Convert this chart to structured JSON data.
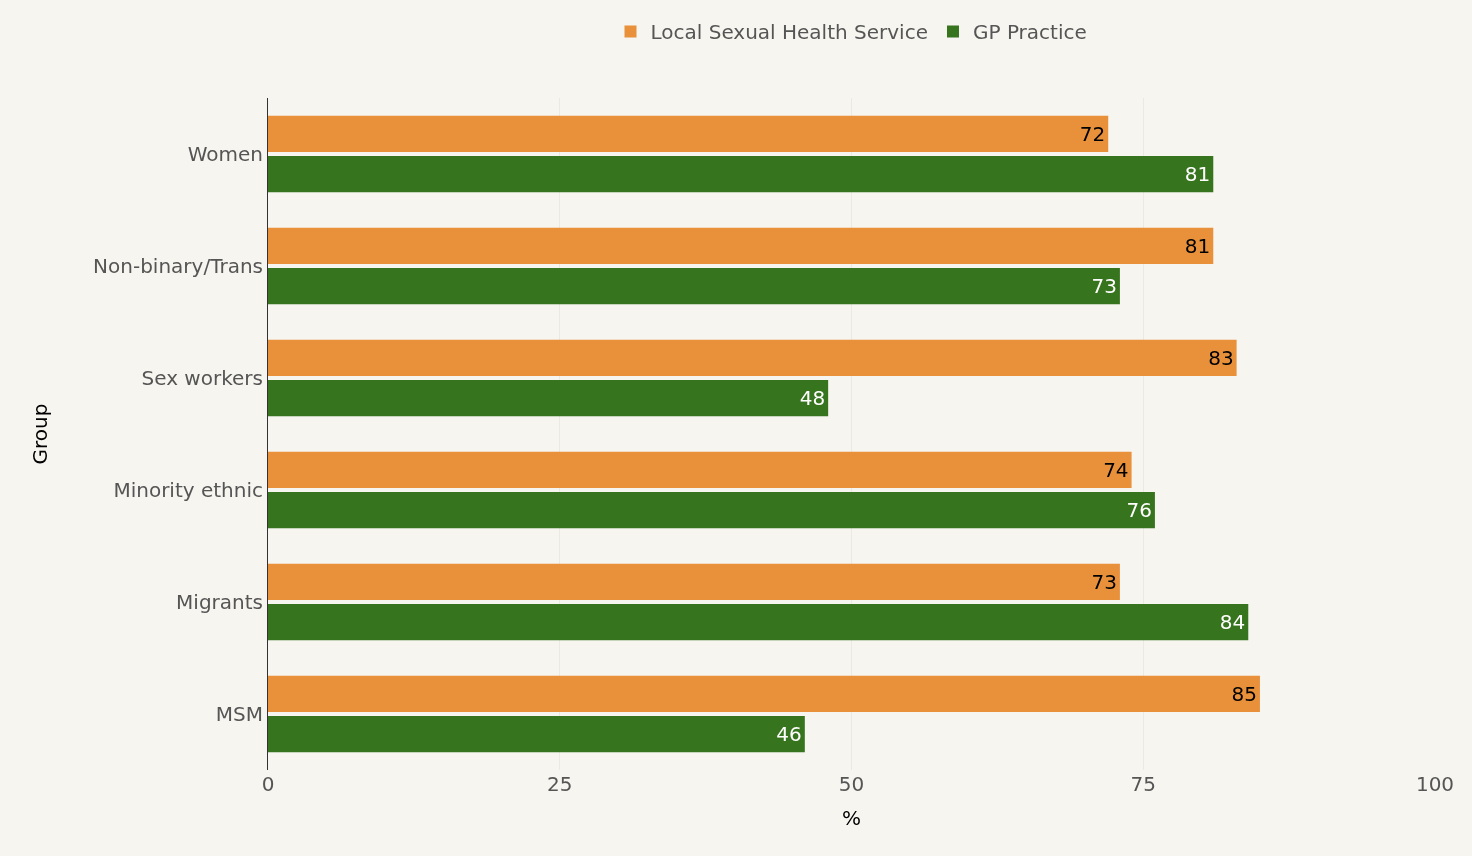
{
  "chart_data": {
    "type": "bar",
    "orientation": "horizontal",
    "xlabel": "%",
    "ylabel": "Group",
    "categories": [
      "Women",
      "Non-binary/Trans",
      "Sex workers",
      "Minority ethnic",
      "Migrants",
      "MSM"
    ],
    "series": [
      {
        "name": "Local Sexual Health Service",
        "color": "#e8913a",
        "values": [
          72,
          81,
          83,
          74,
          73,
          85
        ]
      },
      {
        "name": "GP Practice",
        "color": "#37741e",
        "values": [
          81,
          73,
          48,
          76,
          84,
          46
        ]
      }
    ],
    "xlim": [
      0,
      100
    ],
    "xticks": [
      0,
      25,
      50,
      75,
      100
    ],
    "grid": "x",
    "legend": "top",
    "data_labels": true
  }
}
